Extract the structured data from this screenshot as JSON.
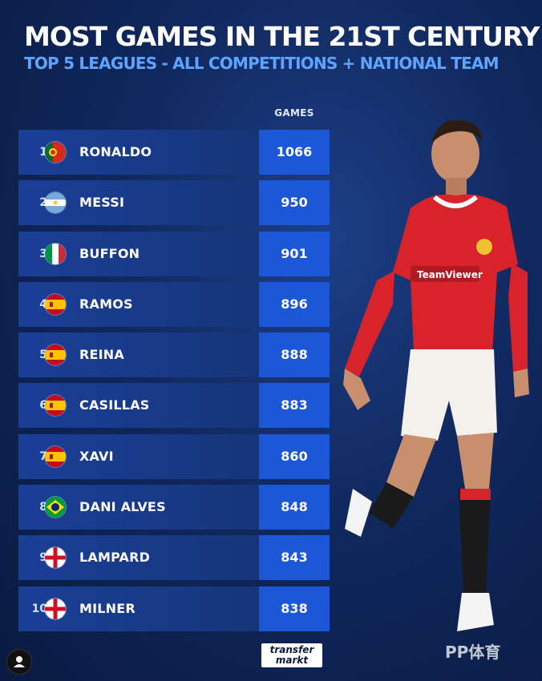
{
  "header": {
    "title": "MOST GAMES IN THE 21ST CENTURY",
    "subtitle": "TOP 5 LEAGUES - ALL COMPETITIONS + NATIONAL TEAM"
  },
  "table": {
    "column_header": "GAMES",
    "rows": [
      {
        "rank": "1",
        "flag": "portugal-flag-icon",
        "name": "RONALDO",
        "games": "1066"
      },
      {
        "rank": "2",
        "flag": "argentina-flag-icon",
        "name": "MESSI",
        "games": "950"
      },
      {
        "rank": "3",
        "flag": "italy-flag-icon",
        "name": "BUFFON",
        "games": "901"
      },
      {
        "rank": "4",
        "flag": "spain-flag-icon",
        "name": "RAMOS",
        "games": "896"
      },
      {
        "rank": "5",
        "flag": "spain-flag-icon",
        "name": "REINA",
        "games": "888"
      },
      {
        "rank": "6",
        "flag": "spain-flag-icon",
        "name": "CASILLAS",
        "games": "883"
      },
      {
        "rank": "7",
        "flag": "spain-flag-icon",
        "name": "XAVI",
        "games": "860"
      },
      {
        "rank": "8",
        "flag": "brazil-flag-icon",
        "name": "DANI ALVES",
        "games": "848"
      },
      {
        "rank": "9",
        "flag": "england-flag-icon",
        "name": "LAMPARD",
        "games": "843"
      },
      {
        "rank": "10",
        "flag": "england-flag-icon",
        "name": "MILNER",
        "games": "838"
      }
    ]
  },
  "footer": {
    "logo_line1": "transfer",
    "logo_line2": "markt",
    "watermark": "PP体育"
  },
  "colors": {
    "background": "#10285e",
    "row": "#173780",
    "games_cell": "#1c57d8",
    "subtitle": "#5ea4ff"
  }
}
